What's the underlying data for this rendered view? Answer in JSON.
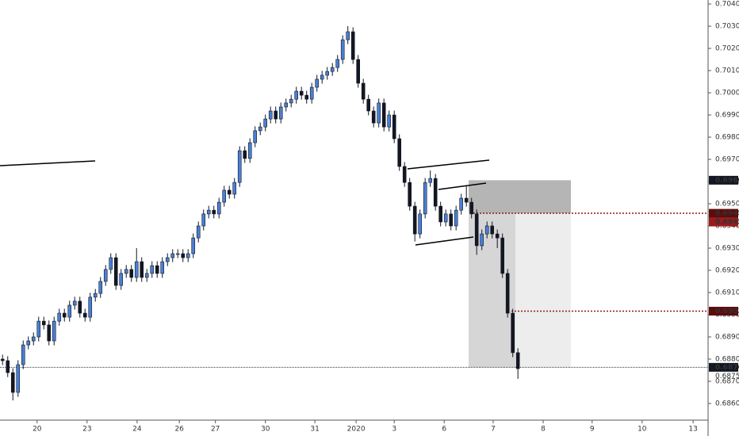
{
  "chart_data": {
    "type": "candlestick",
    "x": [
      0,
      1,
      2,
      3,
      4,
      5,
      6,
      7,
      8,
      9,
      10,
      11,
      12,
      13,
      14,
      15,
      16,
      17,
      18,
      19,
      20,
      21,
      22,
      23,
      24,
      25,
      26,
      27,
      28,
      29,
      30,
      31,
      32,
      33,
      34,
      35,
      36,
      37,
      38,
      39,
      40,
      41,
      42,
      43,
      44,
      45,
      46,
      47,
      48,
      49,
      50,
      51,
      52,
      53,
      54,
      55,
      56,
      57,
      58,
      59,
      60,
      61,
      62,
      63,
      64,
      65,
      66,
      67,
      68,
      69,
      70,
      71,
      72,
      73,
      74,
      75,
      76,
      77,
      78,
      79,
      80,
      81,
      82,
      83,
      84,
      85,
      86,
      87,
      88,
      89,
      90,
      91,
      92,
      93,
      94,
      95,
      96,
      97,
      98,
      99,
      100
    ],
    "open": [
      0.688,
      0.68793,
      0.68739,
      0.6865,
      0.68775,
      0.68864,
      0.68882,
      0.689,
      0.68971,
      0.68954,
      0.68882,
      0.68971,
      0.69007,
      0.68989,
      0.69043,
      0.69061,
      0.69007,
      0.68989,
      0.69079,
      0.69096,
      0.6915,
      0.69204,
      0.69257,
      0.69132,
      0.69186,
      0.69204,
      0.69168,
      0.69239,
      0.69168,
      0.69186,
      0.69221,
      0.69186,
      0.69239,
      0.69257,
      0.69275,
      0.69275,
      0.69257,
      0.69275,
      0.69346,
      0.694,
      0.69454,
      0.69471,
      0.69454,
      0.69507,
      0.69561,
      0.69543,
      0.69596,
      0.69739,
      0.69704,
      0.69775,
      0.69829,
      0.69846,
      0.69882,
      0.69918,
      0.69882,
      0.69936,
      0.69954,
      0.69971,
      0.70007,
      0.69989,
      0.69971,
      0.70025,
      0.70061,
      0.70079,
      0.70096,
      0.70114,
      0.7015,
      0.70239,
      0.70275,
      0.7015,
      0.70043,
      0.69971,
      0.69918,
      0.69864,
      0.69954,
      0.69846,
      0.699,
      0.69793,
      0.69668,
      0.69596,
      0.69489,
      0.69364,
      0.69454,
      0.69596,
      0.69614,
      0.69489,
      0.69418,
      0.69454,
      0.694,
      0.69471,
      0.69525,
      0.69507,
      0.69454,
      0.69311,
      0.69364,
      0.694,
      0.69364,
      0.69346,
      0.69186,
      0.69007,
      0.68829
    ],
    "high": [
      0.6882,
      0.68813,
      0.68759,
      0.68795,
      0.68884,
      0.68902,
      0.6892,
      0.68991,
      0.68991,
      0.68974,
      0.68991,
      0.69027,
      0.69027,
      0.69063,
      0.69081,
      0.69081,
      0.69027,
      0.69099,
      0.69116,
      0.6917,
      0.69224,
      0.69277,
      0.69277,
      0.69206,
      0.69224,
      0.69224,
      0.693,
      0.69259,
      0.69206,
      0.69241,
      0.69241,
      0.69259,
      0.69277,
      0.69295,
      0.69295,
      0.69295,
      0.69295,
      0.69366,
      0.6942,
      0.69474,
      0.69491,
      0.69491,
      0.69527,
      0.69581,
      0.69581,
      0.69616,
      0.69759,
      0.69759,
      0.69795,
      0.69849,
      0.69866,
      0.69902,
      0.69938,
      0.69938,
      0.69956,
      0.69974,
      0.69991,
      0.70027,
      0.70027,
      0.70009,
      0.70045,
      0.70081,
      0.70099,
      0.70116,
      0.70134,
      0.7017,
      0.70259,
      0.703,
      0.70295,
      0.7017,
      0.70063,
      0.69991,
      0.69938,
      0.69974,
      0.69974,
      0.6992,
      0.6992,
      0.69813,
      0.69688,
      0.69616,
      0.69509,
      0.69474,
      0.69616,
      0.6965,
      0.69634,
      0.69509,
      0.69474,
      0.69474,
      0.69491,
      0.69545,
      0.6958,
      0.69527,
      0.69474,
      0.69384,
      0.6942,
      0.6942,
      0.69384,
      0.69366,
      0.69206,
      0.69027,
      0.68849
    ],
    "low": [
      0.68773,
      0.68719,
      0.68614,
      0.6863,
      0.68755,
      0.68844,
      0.68862,
      0.6888,
      0.68934,
      0.68862,
      0.68862,
      0.68951,
      0.68969,
      0.68969,
      0.69023,
      0.68987,
      0.68969,
      0.68969,
      0.69059,
      0.69076,
      0.6913,
      0.69184,
      0.69112,
      0.69112,
      0.69166,
      0.69148,
      0.69148,
      0.69148,
      0.69148,
      0.69166,
      0.69166,
      0.69166,
      0.69219,
      0.69237,
      0.69255,
      0.69237,
      0.69237,
      0.69255,
      0.69326,
      0.6938,
      0.69434,
      0.69434,
      0.69434,
      0.69487,
      0.69523,
      0.69523,
      0.69576,
      0.69684,
      0.69684,
      0.69755,
      0.69809,
      0.69826,
      0.69862,
      0.69862,
      0.69862,
      0.69916,
      0.69934,
      0.69951,
      0.69969,
      0.69951,
      0.69951,
      0.70005,
      0.70041,
      0.70059,
      0.70076,
      0.70094,
      0.7013,
      0.70219,
      0.7013,
      0.70023,
      0.69951,
      0.69898,
      0.69844,
      0.69844,
      0.69826,
      0.69826,
      0.69773,
      0.69648,
      0.69576,
      0.69469,
      0.6933,
      0.69344,
      0.69434,
      0.69576,
      0.69469,
      0.69398,
      0.69398,
      0.6938,
      0.6938,
      0.69451,
      0.69487,
      0.69434,
      0.6927,
      0.69291,
      0.69344,
      0.69344,
      0.693,
      0.69166,
      0.68987,
      0.68809,
      0.68711
    ],
    "close": [
      0.68793,
      0.68739,
      0.6865,
      0.68775,
      0.68864,
      0.68882,
      0.689,
      0.68971,
      0.68954,
      0.68882,
      0.68971,
      0.69007,
      0.68989,
      0.69043,
      0.69061,
      0.69007,
      0.68989,
      0.69079,
      0.69096,
      0.6915,
      0.69204,
      0.69257,
      0.69132,
      0.69186,
      0.69204,
      0.69168,
      0.69239,
      0.69168,
      0.69186,
      0.69221,
      0.69186,
      0.69239,
      0.69257,
      0.69275,
      0.69275,
      0.69257,
      0.69275,
      0.69346,
      0.694,
      0.69454,
      0.69471,
      0.69454,
      0.69507,
      0.69561,
      0.69543,
      0.69596,
      0.69739,
      0.69704,
      0.69775,
      0.69829,
      0.69846,
      0.69882,
      0.69918,
      0.69882,
      0.69936,
      0.69954,
      0.69971,
      0.70007,
      0.69989,
      0.69971,
      0.70025,
      0.70061,
      0.70079,
      0.70096,
      0.70114,
      0.7015,
      0.70239,
      0.70275,
      0.7015,
      0.70043,
      0.69971,
      0.69918,
      0.69864,
      0.69954,
      0.69846,
      0.699,
      0.69793,
      0.69668,
      0.69596,
      0.69489,
      0.69364,
      0.69454,
      0.69596,
      0.69614,
      0.69489,
      0.69418,
      0.69454,
      0.694,
      0.69471,
      0.69525,
      0.69507,
      0.69454,
      0.69311,
      0.69364,
      0.694,
      0.69364,
      0.69346,
      0.69186,
      0.69007,
      0.68829,
      0.68757
    ],
    "up_color": "#4a7fd4",
    "down_color": "#131722",
    "xlim": [
      -0.5,
      136.9
    ],
    "ylim": [
      0.68525,
      0.70418
    ],
    "xticks": [
      {
        "value": 6.7,
        "label": "20"
      },
      {
        "value": 16.4,
        "label": "23"
      },
      {
        "value": 26.1,
        "label": "24"
      },
      {
        "value": 34.3,
        "label": "26"
      },
      {
        "value": 41.3,
        "label": "27"
      },
      {
        "value": 51,
        "label": "30"
      },
      {
        "value": 60.6,
        "label": "31"
      },
      {
        "value": 68.6,
        "label": "2020"
      },
      {
        "value": 76,
        "label": "3"
      },
      {
        "value": 85.7,
        "label": "6"
      },
      {
        "value": 95.2,
        "label": "7"
      },
      {
        "value": 104.9,
        "label": "8"
      },
      {
        "value": 114.4,
        "label": "9"
      },
      {
        "value": 124.1,
        "label": "10"
      },
      {
        "value": 134,
        "label": "13"
      }
    ],
    "yticks": [
      {
        "value": 0.704,
        "label": "0.70400"
      },
      {
        "value": 0.703,
        "label": "0.70300"
      },
      {
        "value": 0.702,
        "label": "0.70200"
      },
      {
        "value": 0.701,
        "label": "0.70100"
      },
      {
        "value": 0.7,
        "label": "0.70000"
      },
      {
        "value": 0.699,
        "label": "0.69900"
      },
      {
        "value": 0.698,
        "label": "0.69800"
      },
      {
        "value": 0.697,
        "label": "0.69700"
      },
      {
        "value": 0.696,
        "label": "0.69600"
      },
      {
        "value": 0.695,
        "label": "0.69500"
      },
      {
        "value": 0.694,
        "label": "0.69400"
      },
      {
        "value": 0.693,
        "label": "0.69300"
      },
      {
        "value": 0.692,
        "label": "0.69200"
      },
      {
        "value": 0.691,
        "label": "0.69100"
      },
      {
        "value": 0.69,
        "label": "0.69000"
      },
      {
        "value": 0.689,
        "label": "0.68900"
      },
      {
        "value": 0.688,
        "label": "0.68800"
      },
      {
        "value": 0.687,
        "label": "0.68700"
      },
      {
        "value": 0.686,
        "label": "0.68600"
      }
    ],
    "markers": [
      {
        "value": 0.69606,
        "color": "#131722"
      },
      {
        "value": 0.69457,
        "color": "#5d0c0c"
      },
      {
        "value": 0.69456,
        "color": "#9b1b1b"
      },
      {
        "value": 0.69016,
        "color": "#5d0c0c"
      },
      {
        "value": 0.68763,
        "color": "#131722"
      },
      {
        "value": 0.68755
      }
    ]
  }
}
